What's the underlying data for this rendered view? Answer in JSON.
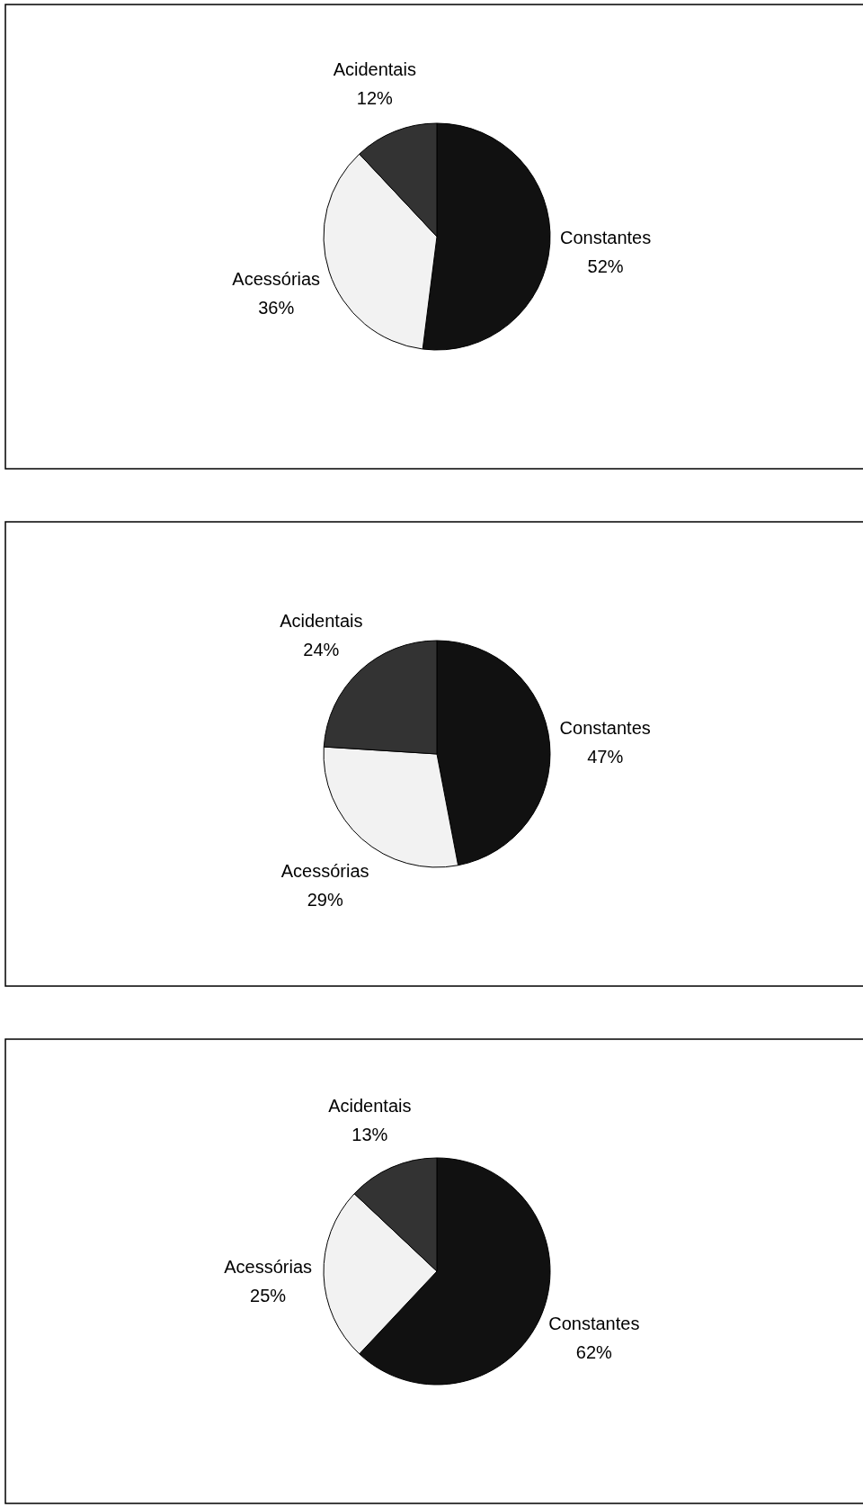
{
  "chart_data": [
    {
      "type": "pie",
      "categories": [
        "Constantes",
        "Acessórias",
        "Acidentais"
      ],
      "values": [
        52,
        36,
        12
      ],
      "value_labels": [
        "52%",
        "36%",
        "12%"
      ],
      "colors": [
        "#111111",
        "#f2f2f2",
        "#333333"
      ]
    },
    {
      "type": "pie",
      "categories": [
        "Constantes",
        "Acessórias",
        "Acidentais"
      ],
      "values": [
        47,
        29,
        24
      ],
      "value_labels": [
        "47%",
        "29%",
        "24%"
      ],
      "colors": [
        "#111111",
        "#f2f2f2",
        "#333333"
      ]
    },
    {
      "type": "pie",
      "categories": [
        "Constantes",
        "Acessórias",
        "Acidentais"
      ],
      "values": [
        62,
        25,
        13
      ],
      "value_labels": [
        "62%",
        "25%",
        "13%"
      ],
      "colors": [
        "#111111",
        "#f2f2f2",
        "#333333"
      ]
    }
  ]
}
